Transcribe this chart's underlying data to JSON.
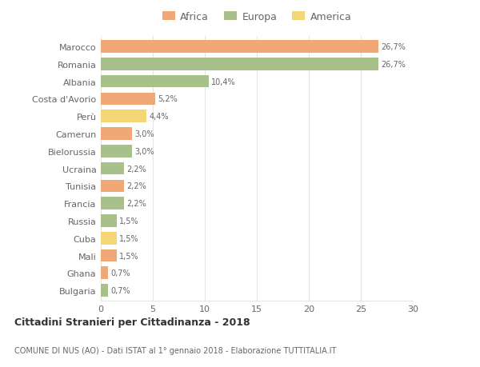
{
  "countries": [
    "Marocco",
    "Romania",
    "Albania",
    "Costa d'Avorio",
    "Perù",
    "Camerun",
    "Bielorussia",
    "Ucraina",
    "Tunisia",
    "Francia",
    "Russia",
    "Cuba",
    "Mali",
    "Ghana",
    "Bulgaria"
  ],
  "values": [
    26.7,
    26.7,
    10.4,
    5.2,
    4.4,
    3.0,
    3.0,
    2.2,
    2.2,
    2.2,
    1.5,
    1.5,
    1.5,
    0.7,
    0.7
  ],
  "labels": [
    "26,7%",
    "26,7%",
    "10,4%",
    "5,2%",
    "4,4%",
    "3,0%",
    "3,0%",
    "2,2%",
    "2,2%",
    "2,2%",
    "1,5%",
    "1,5%",
    "1,5%",
    "0,7%",
    "0,7%"
  ],
  "continents": [
    "Africa",
    "Europa",
    "Europa",
    "Africa",
    "America",
    "Africa",
    "Europa",
    "Europa",
    "Africa",
    "Europa",
    "Europa",
    "America",
    "Africa",
    "Africa",
    "Europa"
  ],
  "colors": {
    "Africa": "#F0A876",
    "Europa": "#A8C08A",
    "America": "#F5D676"
  },
  "legend_order": [
    "Africa",
    "Europa",
    "America"
  ],
  "title": "Cittadini Stranieri per Cittadinanza - 2018",
  "subtitle": "COMUNE DI NUS (AO) - Dati ISTAT al 1° gennaio 2018 - Elaborazione TUTTITALIA.IT",
  "xlim": [
    0,
    30
  ],
  "xticks": [
    0,
    5,
    10,
    15,
    20,
    25,
    30
  ],
  "bg_color": "#ffffff",
  "grid_color": "#e5e5e5"
}
